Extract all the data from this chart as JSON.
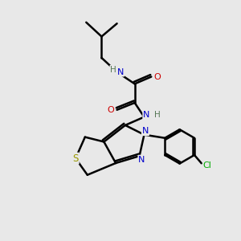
{
  "background_color": "#e8e8e8",
  "bond_color": "#000000",
  "bond_width": 1.8,
  "atom_colors": {
    "C": "#000000",
    "N": "#0000cc",
    "O": "#cc0000",
    "S": "#999900",
    "Cl": "#00aa00",
    "H": "#557755"
  },
  "font_size": 8.0,
  "figsize": [
    3.0,
    3.0
  ],
  "dpi": 100,
  "xlim": [
    0,
    10
  ],
  "ylim": [
    0,
    10
  ]
}
